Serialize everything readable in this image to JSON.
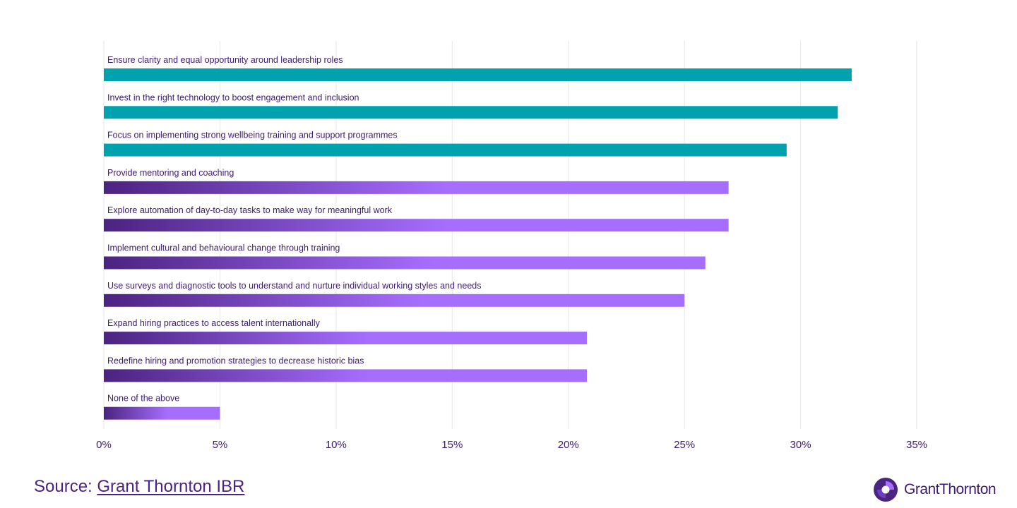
{
  "chart_data": {
    "type": "bar",
    "orientation": "horizontal",
    "categories": [
      "Ensure clarity and equal opportunity around leadership roles",
      "Invest in the right technology to boost engagement and inclusion",
      "Focus on implementing strong wellbeing training and support programmes",
      "Provide mentoring and coaching",
      "Explore automation of day-to-day tasks to make way for meaningful work",
      "Implement cultural and behavioural change through training",
      "Use surveys and diagnostic tools to understand and nurture individual working styles and needs",
      "Expand hiring practices to access talent internationally",
      "Redefine hiring and promotion strategies to decrease historic bias",
      "None of the above"
    ],
    "values": [
      32.2,
      31.6,
      29.4,
      26.9,
      26.9,
      25.9,
      25.0,
      20.8,
      20.8,
      5.0
    ],
    "highlighted": [
      true,
      true,
      true,
      false,
      false,
      false,
      false,
      false,
      false,
      false
    ],
    "x_ticks": [
      "0%",
      "5%",
      "10%",
      "15%",
      "20%",
      "25%",
      "30%",
      "35%"
    ],
    "xlim": [
      0,
      35
    ],
    "grid": true,
    "title": "",
    "xlabel": "",
    "ylabel": "",
    "colors": {
      "highlight": "#00a3ad",
      "gradient_start": "#4b2380",
      "gradient_end": "#a66eff",
      "text": "#3d1c70"
    }
  },
  "footer": {
    "source_prefix": "Source: ",
    "source_link": "Grant Thornton IBR"
  },
  "logo": {
    "text": "GrantThornton"
  }
}
